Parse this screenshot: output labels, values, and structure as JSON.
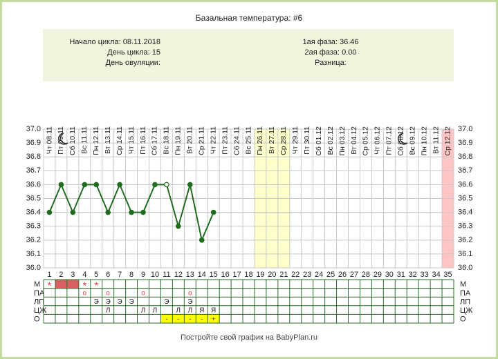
{
  "chart_data": {
    "type": "line",
    "title": "Базальная температура: #6",
    "info": {
      "left": [
        "Начало цикла: 08.11.2018",
        "День цикла: 15",
        "День овуляции:"
      ],
      "right": [
        "1ая фаза: 36.46",
        "2ая фаза: 0.00",
        "Разница:"
      ]
    },
    "categories": [
      "Чт 08.11",
      "Пт 09.11",
      "Сб 10.11",
      "Вс 11.11",
      "Пн 12.11",
      "Вт 13.11",
      "Ср 14.11",
      "Чт 15.11",
      "Пт 16.11",
      "Сб 17.11",
      "Вс 18.11",
      "Пн 19.11",
      "Вт 20.11",
      "Ср 21.11",
      "Чт 22.11",
      "Пт 23.11",
      "Сб 24.11",
      "Вс 25.11",
      "Пн 26.11",
      "Вт 27.11",
      "Ср 28.11",
      "Чт 29.11",
      "Пт 30.11",
      "Сб 01.12",
      "Вс 02.12",
      "Пн 03.12",
      "Вт 04.12",
      "Ср 05.12",
      "Чт 06.12",
      "Пт 07.12",
      "Сб 08.12",
      "Вс 09.12",
      "Пн 10.12",
      "Вт 11.12",
      "Ср 12.12"
    ],
    "day_numbers": [
      "1",
      "2",
      "3",
      "4",
      "5",
      "6",
      "7",
      "8",
      "9",
      "10",
      "11",
      "12",
      "13",
      "14",
      "15",
      "16",
      "17",
      "18",
      "19",
      "20",
      "21",
      "22",
      "23",
      "24",
      "25",
      "26",
      "27",
      "28",
      "29",
      "30",
      "31",
      "32",
      "33",
      "34",
      "35"
    ],
    "values": [
      36.4,
      36.6,
      36.4,
      36.6,
      36.6,
      36.4,
      36.6,
      36.4,
      36.4,
      36.6,
      36.6,
      36.3,
      36.6,
      36.2,
      36.4,
      null,
      null,
      null,
      null,
      null,
      null,
      null,
      null,
      null,
      null,
      null,
      null,
      null,
      null,
      null,
      null,
      null,
      null,
      null,
      null
    ],
    "hollow_indices": [
      10
    ],
    "color": "#1f6b1f",
    "ylim": [
      36.0,
      37.0
    ],
    "yticks": [
      {
        "value": 37.0,
        "label": "37.0"
      },
      36.9,
      36.8,
      36.7,
      36.6,
      36.5,
      36.4,
      36.3,
      36.2,
      36.1,
      {
        "value": 36.0,
        "label": "36.0"
      }
    ],
    "grid": true,
    "bands": [
      {
        "from": 19,
        "to": 21,
        "color": "#ffffcc"
      },
      {
        "from": 35,
        "to": 35,
        "color": "#ffc4c4"
      }
    ],
    "table": {
      "rows": [
        {
          "label": "М",
          "color": "#e04040",
          "filled_days": [
            2,
            3
          ],
          "cells": [
            {
              "day": 1,
              "text": "*"
            },
            {
              "day": 4,
              "text": "*"
            },
            {
              "day": 5,
              "text": "*"
            }
          ]
        },
        {
          "label": "ПА",
          "color": "#e04040",
          "cells": [
            {
              "day": 4,
              "text": "о"
            },
            {
              "day": 6,
              "text": "о"
            },
            {
              "day": 9,
              "text": "о"
            },
            {
              "day": 13,
              "text": "о"
            }
          ]
        },
        {
          "label": "ЛП",
          "color": "#222222",
          "cells": [
            {
              "day": 5,
              "text": "Э"
            },
            {
              "day": 6,
              "text": "Э"
            },
            {
              "day": 7,
              "text": "Э"
            },
            {
              "day": 8,
              "text": "Э"
            },
            {
              "day": 11,
              "text": "Э"
            },
            {
              "day": 13,
              "text": "Э"
            }
          ]
        },
        {
          "label": "ЦЖ",
          "color": "#222222",
          "cells": [
            {
              "day": 6,
              "text": "Л"
            },
            {
              "day": 9,
              "text": "Л"
            },
            {
              "day": 10,
              "text": "Л"
            },
            {
              "day": 12,
              "text": "Л"
            },
            {
              "day": 13,
              "text": "Л"
            },
            {
              "day": 14,
              "text": "Я"
            },
            {
              "day": 15,
              "text": "Я"
            }
          ]
        },
        {
          "label": "О",
          "color": "#555555",
          "fill": "#ffff00",
          "cells": [
            {
              "day": 11,
              "text": "-"
            },
            {
              "day": 12,
              "text": "-"
            },
            {
              "day": 13,
              "text": "-"
            },
            {
              "day": 14,
              "text": "-"
            },
            {
              "day": 15,
              "text": "+"
            }
          ]
        }
      ]
    },
    "footer": "Постройте свой график на BabyPlan.ru"
  }
}
